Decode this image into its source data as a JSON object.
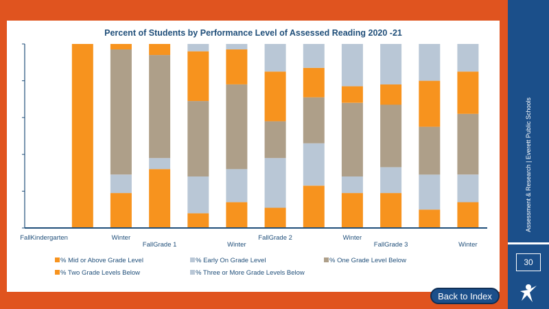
{
  "slide": {
    "side_text": "Assessment & Research | Everett Public Schools",
    "page_number": "30",
    "back_label": "Back to Index"
  },
  "colors": {
    "orange": "#f7931e",
    "light_blue": "#b9c7d6",
    "taupe": "#ae9f89",
    "axis": "#1f4e79",
    "title": "#1f4e79",
    "panel": "#1b4f8a",
    "background": "#e0541f"
  },
  "chart_data": {
    "type": "bar",
    "stacked": true,
    "title": "Percent of Students by Performance Level of Assessed Reading 2020 -21",
    "ylim": [
      0,
      100
    ],
    "grid": false,
    "legend_position": "bottom",
    "categories": [
      {
        "label": "FallKindergarten",
        "row": 0
      },
      {
        "label": "",
        "row": 0
      },
      {
        "label": "Winter",
        "row": 0
      },
      {
        "label": "FallGrade 1",
        "row": 1
      },
      {
        "label": "",
        "row": 0
      },
      {
        "label": "Winter",
        "row": 1
      },
      {
        "label": "FallGrade 2",
        "row": 0
      },
      {
        "label": "",
        "row": 0
      },
      {
        "label": "Winter",
        "row": 0
      },
      {
        "label": "FallGrade 3",
        "row": 1
      },
      {
        "label": "",
        "row": 0
      },
      {
        "label": "Winter",
        "row": 1
      }
    ],
    "series": [
      {
        "name": "% Mid or Above Grade Level",
        "color": "#f7931e",
        "values": [
          0,
          100,
          19,
          32,
          8,
          14,
          11,
          23,
          19,
          19,
          10,
          14
        ]
      },
      {
        "name": "% Early On Grade Level",
        "color": "#b9c7d6",
        "values": [
          0,
          0,
          10,
          6,
          20,
          18,
          27,
          23,
          9,
          14,
          19,
          15
        ]
      },
      {
        "name": "% One Grade Level Below",
        "color": "#ae9f89",
        "values": [
          0,
          0,
          68,
          56,
          41,
          46,
          20,
          25,
          40,
          34,
          26,
          33
        ]
      },
      {
        "name": "% Two Grade Levels Below",
        "color": "#f7931e",
        "values": [
          0,
          0,
          3,
          6,
          27,
          19,
          27,
          16,
          9,
          11,
          25,
          23
        ]
      },
      {
        "name": "% Three or More Grade Levels Below",
        "color": "#b9c7d6",
        "values": [
          0,
          0,
          0,
          0,
          4,
          3,
          15,
          13,
          23,
          22,
          20,
          15
        ]
      }
    ]
  }
}
